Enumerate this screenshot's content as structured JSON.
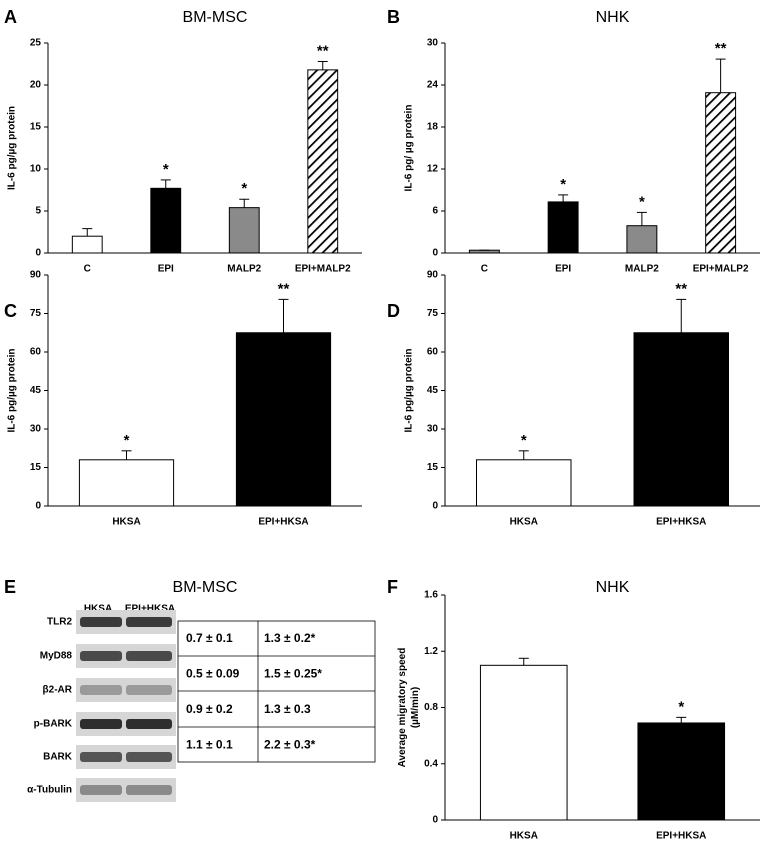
{
  "chart_data": [
    {
      "type": "bar",
      "panel": "A",
      "title": "BM-MSC",
      "y_label": [
        "IL-6 pg/µg protein"
      ],
      "categories": [
        "C",
        "EPI",
        "MALP2",
        "EPI+MALP2"
      ],
      "values": [
        2.0,
        7.7,
        5.4,
        21.8
      ],
      "errors": [
        0.9,
        1.0,
        1.0,
        1.0
      ],
      "annotations": [
        null,
        "*",
        "*",
        "**"
      ],
      "colors": [
        "#ffffff",
        "#000000",
        "#8a8a8a",
        "#ffffff"
      ],
      "hatched": [
        false,
        false,
        false,
        true
      ],
      "ylim": [
        0,
        25
      ],
      "yticks": [
        0,
        5,
        10,
        15,
        20,
        25
      ]
    },
    {
      "type": "bar",
      "panel": "B",
      "title": "NHK",
      "y_label": [
        "IL-6 pg/ µg protein"
      ],
      "categories": [
        "C",
        "EPI",
        "MALP2",
        "EPI+MALP2"
      ],
      "values": [
        0.4,
        7.3,
        3.9,
        22.9
      ],
      "errors": [
        0,
        1.0,
        1.9,
        4.8
      ],
      "annotations": [
        null,
        "*",
        "*",
        "**"
      ],
      "colors": [
        "#8a8a8a",
        "#000000",
        "#8a8a8a",
        "#ffffff"
      ],
      "hatched": [
        false,
        false,
        false,
        true
      ],
      "ylim": [
        0,
        30
      ],
      "yticks": [
        0,
        6,
        12,
        18,
        24,
        30
      ]
    },
    {
      "type": "bar",
      "panel": "C",
      "y_label": [
        "IL-6 pg/µg protein"
      ],
      "categories": [
        "HKSA",
        "EPI+HKSA"
      ],
      "values": [
        18,
        67.5
      ],
      "errors": [
        3.5,
        13
      ],
      "annotations": [
        "*",
        "**"
      ],
      "colors": [
        "#ffffff",
        "#000000"
      ],
      "hatched": [
        false,
        false
      ],
      "ylim": [
        0,
        90
      ],
      "yticks": [
        0,
        15,
        30,
        45,
        60,
        75,
        90
      ]
    },
    {
      "type": "bar",
      "panel": "D",
      "y_label": [
        "IL-6 pg/µg protein"
      ],
      "categories": [
        "HKSA",
        "EPI+HKSA"
      ],
      "values": [
        18,
        67.5
      ],
      "errors": [
        3.5,
        13
      ],
      "annotations": [
        "*",
        "**"
      ],
      "colors": [
        "#ffffff",
        "#000000"
      ],
      "hatched": [
        false,
        false
      ],
      "ylim": [
        0,
        90
      ],
      "yticks": [
        0,
        15,
        30,
        45,
        60,
        75,
        90
      ]
    },
    {
      "type": "bar",
      "panel": "F",
      "title": "NHK",
      "y_label": [
        "Average migratory speed",
        "(µM/min)"
      ],
      "categories": [
        "HKSA",
        "EPI+HKSA"
      ],
      "values": [
        1.1,
        0.69
      ],
      "errors": [
        0.05,
        0.04
      ],
      "annotations": [
        null,
        "*"
      ],
      "colors": [
        "#ffffff",
        "#000000"
      ],
      "hatched": [
        false,
        false
      ],
      "ylim": [
        0,
        1.6
      ],
      "yticks": [
        0,
        0.4,
        0.8,
        1.2,
        1.6
      ]
    }
  ],
  "blot": {
    "panel": "E",
    "title": "BM-MSC",
    "columns": [
      "HKSA",
      "EPI+HKSA"
    ],
    "rows": [
      "TLR2",
      "MyD88",
      "β2-AR",
      "p-BARK",
      "BARK",
      "α-Tubulin"
    ],
    "table": [
      [
        "0.7 ± 0.1",
        "1.3 ± 0.2*"
      ],
      [
        "0.5 ± 0.09",
        "1.5 ± 0.25*"
      ],
      [
        "0.9 ± 0.2",
        "1.3 ± 0.3"
      ],
      [
        "1.1 ± 0.1",
        "2.2 ± 0.3*"
      ]
    ]
  }
}
